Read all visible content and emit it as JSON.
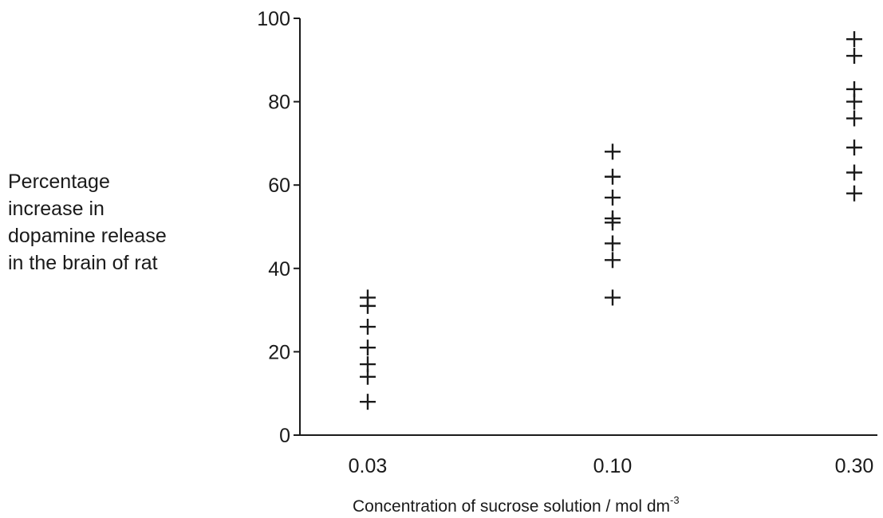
{
  "chart_data": {
    "type": "scatter",
    "title": "",
    "ylabel_lines": [
      "Percentage",
      "increase in",
      "dopamine release",
      "in the brain of rat"
    ],
    "xlabel": "Concentration of sucrose solution / mol dm",
    "xlabel_exponent": "-3",
    "ylim": [
      0,
      100
    ],
    "yticks": [
      "0",
      "20",
      "40",
      "60",
      "80",
      "100"
    ],
    "categories": [
      "0.03",
      "0.10",
      "0.30"
    ],
    "grid": false,
    "series": [
      {
        "category": "0.03",
        "y": [
          8,
          14,
          17,
          21,
          26,
          31,
          33
        ]
      },
      {
        "category": "0.10",
        "y": [
          33,
          42,
          46,
          51,
          52,
          57,
          62,
          68
        ]
      },
      {
        "category": "0.30",
        "y": [
          58,
          63,
          69,
          76,
          80,
          83,
          91,
          95
        ]
      }
    ],
    "marker": "+",
    "color": "#1a1a1a"
  }
}
